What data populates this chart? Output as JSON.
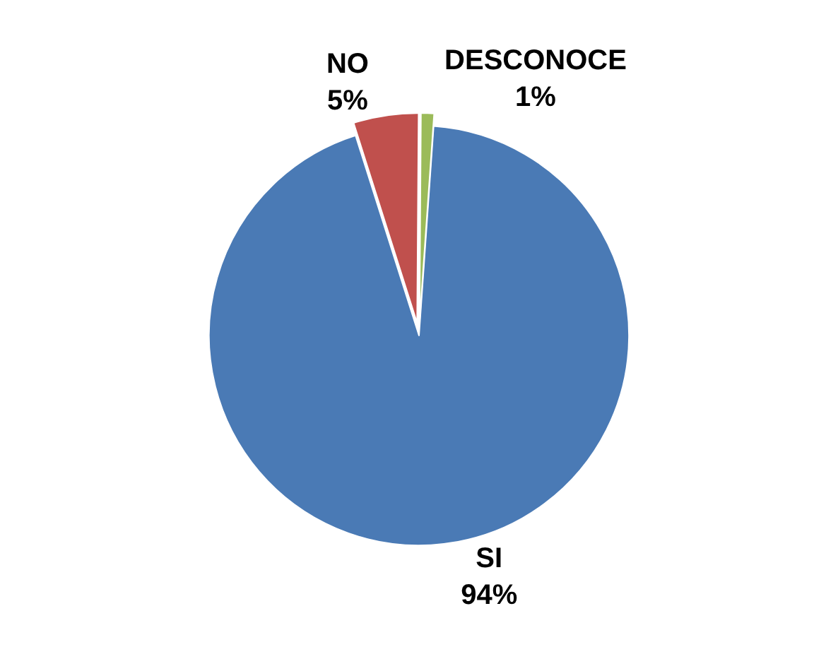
{
  "chart_data": {
    "type": "pie",
    "categories": [
      "SI",
      "NO",
      "DESCONOCE"
    ],
    "values": [
      94,
      5,
      1
    ],
    "value_labels": [
      "94%",
      "5%",
      "1%"
    ],
    "colors": [
      "#4a7ab5",
      "#c0504d",
      "#9bbb59"
    ],
    "legend": false
  }
}
